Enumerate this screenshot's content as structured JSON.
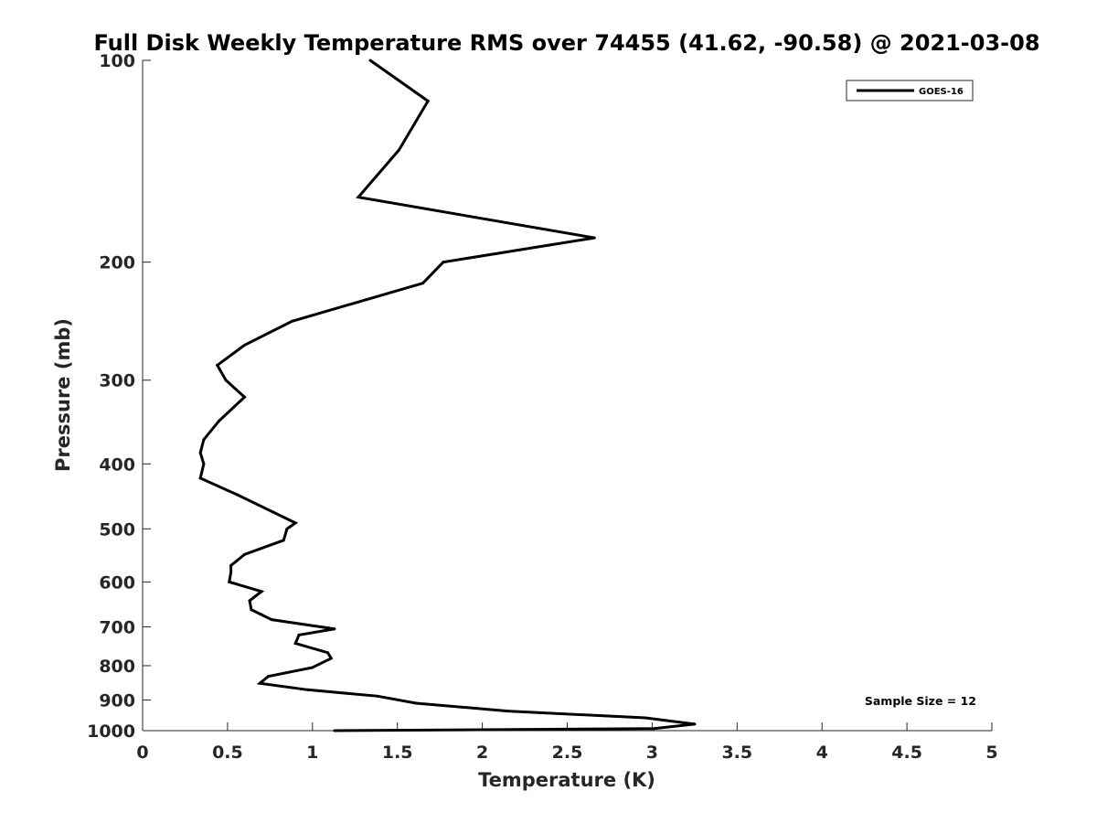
{
  "chart_data": {
    "type": "line",
    "title": "Full Disk Weekly Temperature RMS over 74455 (41.62, -90.58) @ 2021-03-08",
    "xlabel": "Temperature (K)",
    "ylabel": "Pressure (mb)",
    "xlim": [
      0,
      5
    ],
    "ylim": [
      1000,
      100
    ],
    "yscale": "log",
    "xticks": [
      "0",
      "0.5",
      "1",
      "1.5",
      "2",
      "2.5",
      "3",
      "3.5",
      "4",
      "4.5",
      "5"
    ],
    "yticks": [
      "100",
      "200",
      "300",
      "400",
      "500",
      "600",
      "700",
      "800",
      "900",
      "1000"
    ],
    "grid": false,
    "legend": {
      "placement": "top-right",
      "entries": [
        "GOES-16"
      ]
    },
    "annotation": "Sample Size = 12",
    "series": [
      {
        "name": "GOES-16",
        "color": "#000000",
        "points": [
          [
            1.34,
            100
          ],
          [
            1.68,
            115
          ],
          [
            1.51,
            136
          ],
          [
            1.27,
            160
          ],
          [
            2.66,
            184
          ],
          [
            1.77,
            200
          ],
          [
            1.65,
            215
          ],
          [
            0.88,
            245
          ],
          [
            0.6,
            266
          ],
          [
            0.44,
            285
          ],
          [
            0.49,
            300
          ],
          [
            0.6,
            318
          ],
          [
            0.45,
            345
          ],
          [
            0.36,
            368
          ],
          [
            0.34,
            385
          ],
          [
            0.36,
            400
          ],
          [
            0.34,
            420
          ],
          [
            0.56,
            445
          ],
          [
            0.9,
            490
          ],
          [
            0.85,
            500
          ],
          [
            0.83,
            520
          ],
          [
            0.6,
            546
          ],
          [
            0.52,
            567
          ],
          [
            0.52,
            580
          ],
          [
            0.51,
            600
          ],
          [
            0.7,
            620
          ],
          [
            0.63,
            640
          ],
          [
            0.64,
            660
          ],
          [
            0.76,
            683
          ],
          [
            1.13,
            705
          ],
          [
            0.92,
            720
          ],
          [
            0.9,
            741
          ],
          [
            1.09,
            765
          ],
          [
            1.11,
            780
          ],
          [
            1.0,
            805
          ],
          [
            0.74,
            830
          ],
          [
            0.69,
            850
          ],
          [
            0.97,
            869
          ],
          [
            1.38,
            888
          ],
          [
            1.61,
            910
          ],
          [
            2.15,
            935
          ],
          [
            2.96,
            957
          ],
          [
            3.25,
            978
          ],
          [
            3.01,
            993
          ],
          [
            1.13,
            1000
          ]
        ]
      }
    ]
  }
}
